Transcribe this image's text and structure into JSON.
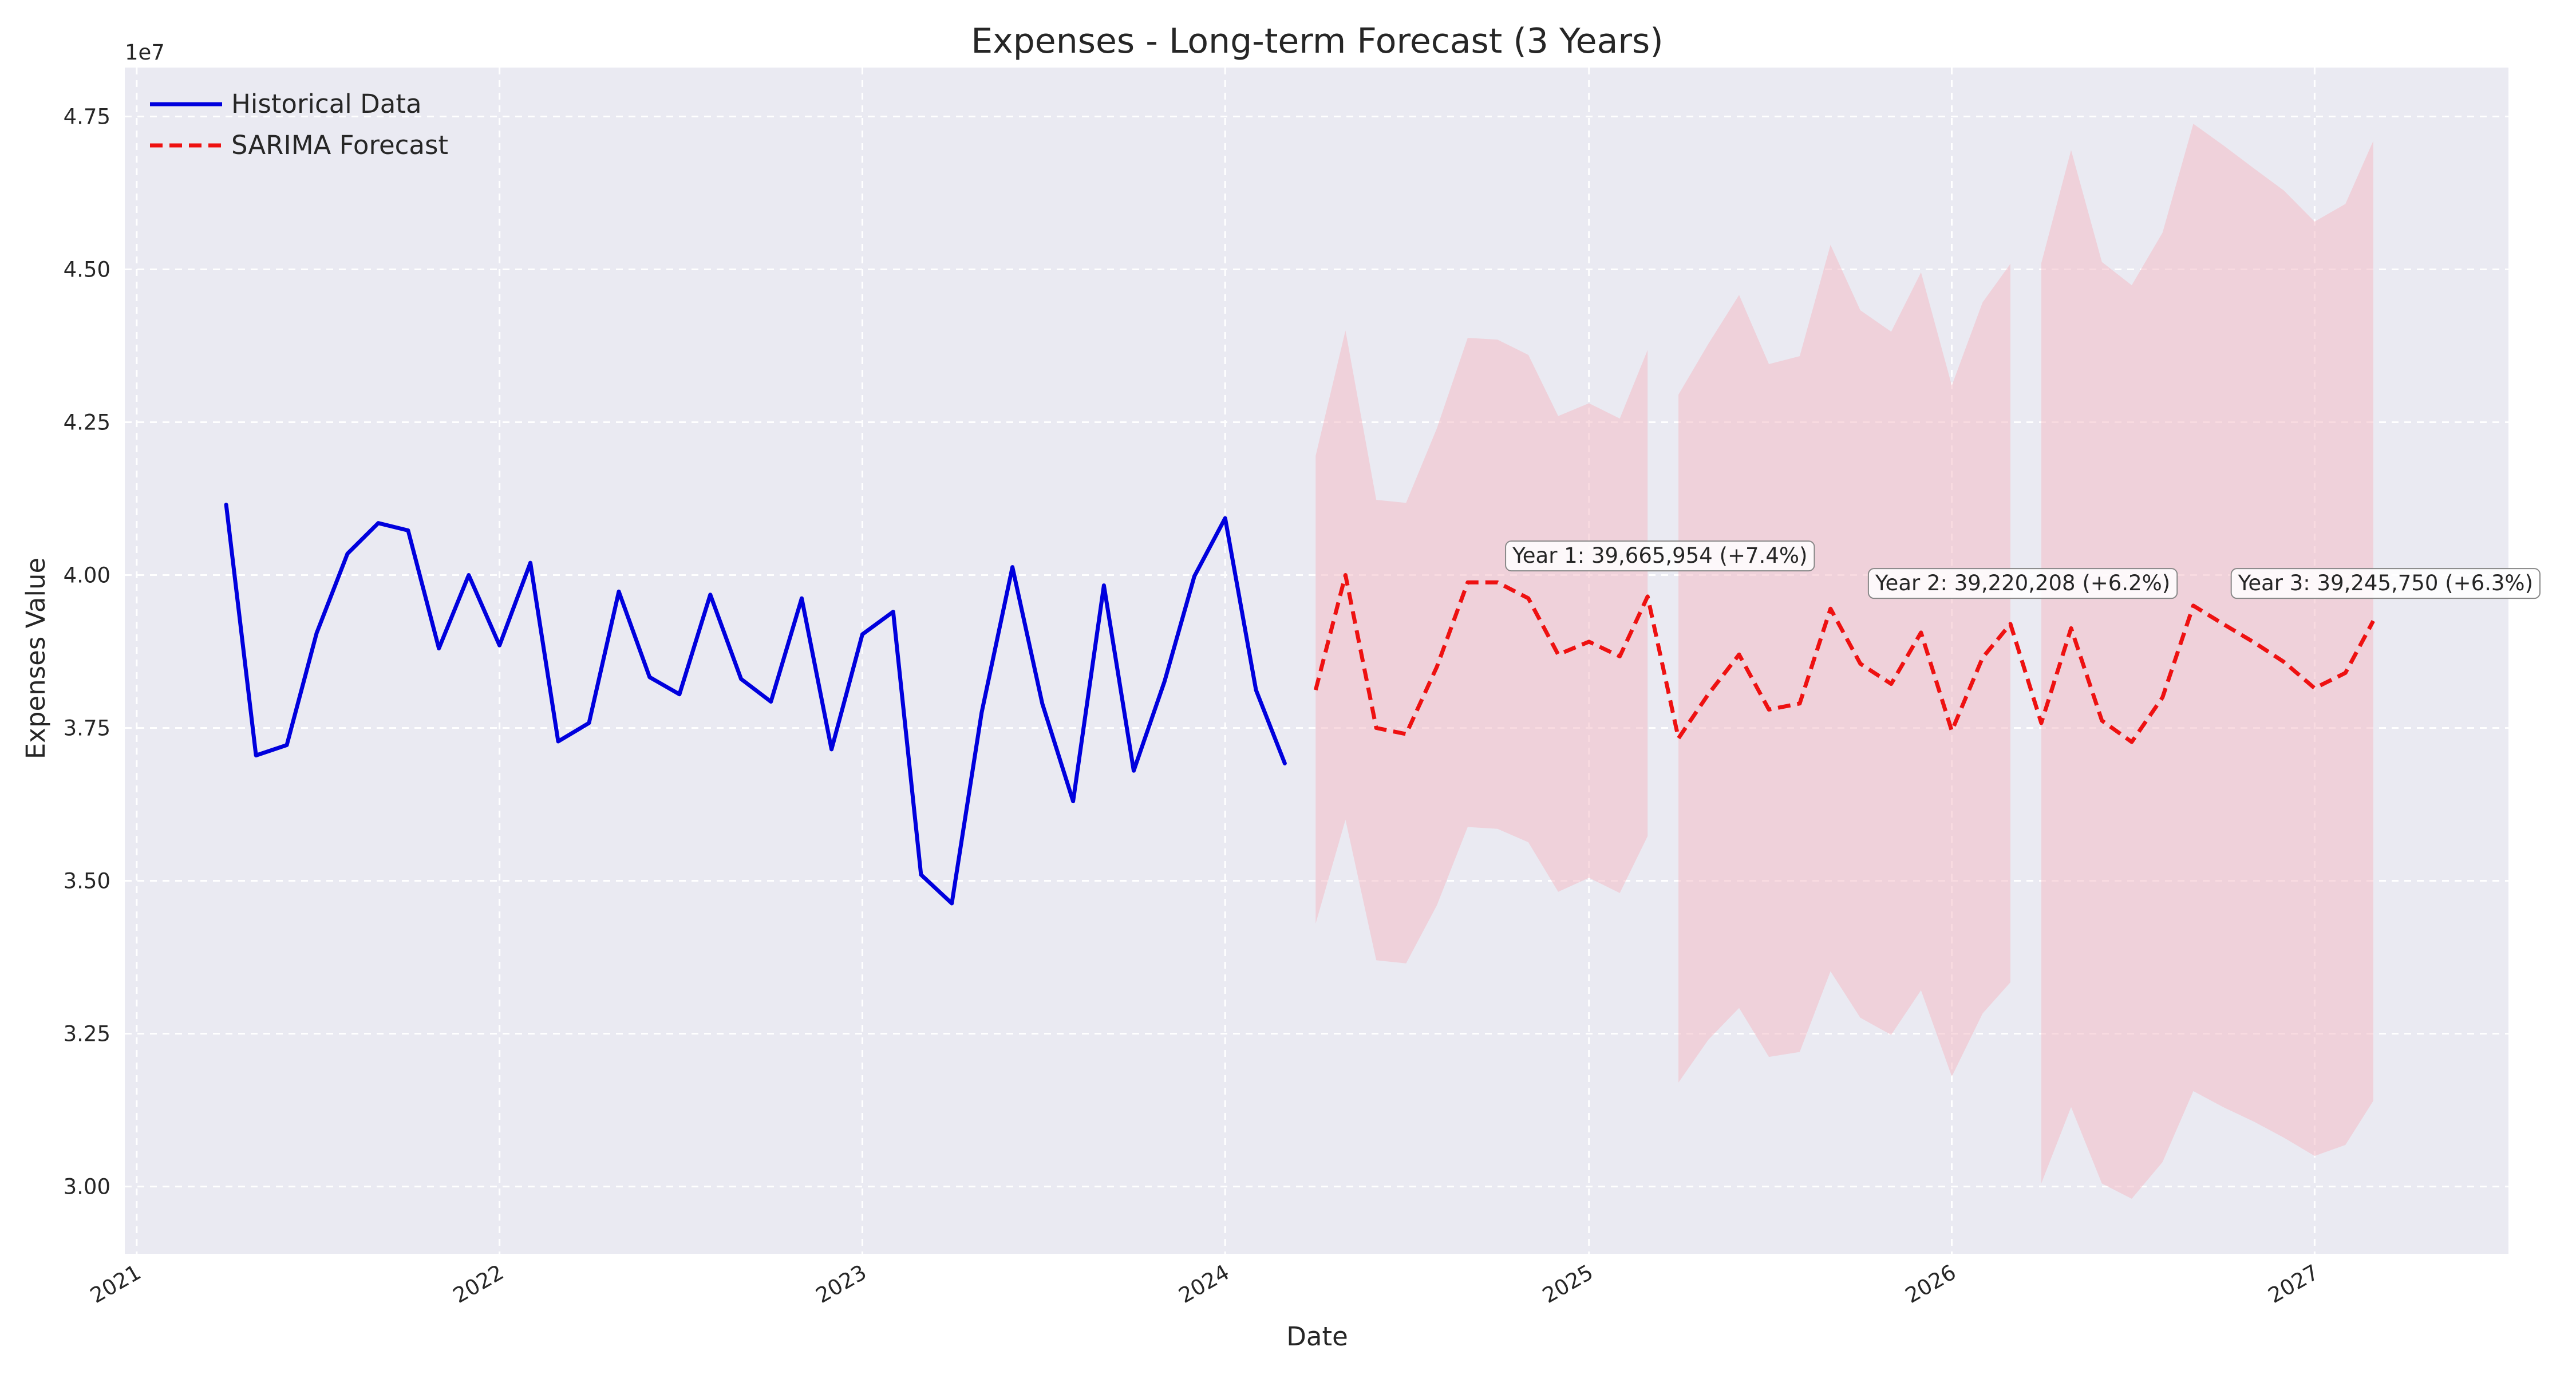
{
  "chart_data": {
    "type": "line",
    "title": "Expenses - Long-term Forecast (3 Years)",
    "xlabel": "Date",
    "ylabel": "Expenses Value",
    "y_offset_label": "1e7",
    "x_range": [
      "2020-12-20",
      "2027-07-15"
    ],
    "ylim": [
      2.89,
      4.83
    ],
    "y_ticks": [
      3.0,
      3.25,
      3.5,
      3.75,
      4.0,
      4.25,
      4.5,
      4.75
    ],
    "y_tick_labels": [
      "3.00",
      "3.25",
      "3.50",
      "3.75",
      "4.00",
      "4.25",
      "4.50",
      "4.75"
    ],
    "x_ticks": [
      "2021-01-01",
      "2022-01-01",
      "2023-01-01",
      "2024-01-01",
      "2025-01-01",
      "2026-01-01",
      "2027-01-01"
    ],
    "x_tick_labels": [
      "2021",
      "2022",
      "2023",
      "2024",
      "2025",
      "2026",
      "2027"
    ],
    "grid": true,
    "legend_position": "top-left",
    "colors": {
      "background": "#eaeaf2",
      "historical": "#0000dd",
      "forecast": "#ee1111",
      "confidence": "#f3bcc6"
    },
    "series": [
      {
        "name": "Historical Data",
        "style": "solid",
        "x": [
          "2021-04-01",
          "2021-05-01",
          "2021-06-01",
          "2021-07-01",
          "2021-08-01",
          "2021-09-01",
          "2021-10-01",
          "2021-11-01",
          "2021-12-01",
          "2022-01-01",
          "2022-02-01",
          "2022-03-01",
          "2022-04-01",
          "2022-05-01",
          "2022-06-01",
          "2022-07-01",
          "2022-08-01",
          "2022-09-01",
          "2022-10-01",
          "2022-11-01",
          "2022-12-01",
          "2023-01-01",
          "2023-02-01",
          "2023-03-01",
          "2023-04-01",
          "2023-05-01",
          "2023-06-01",
          "2023-07-01",
          "2023-08-01",
          "2023-09-01",
          "2023-10-01",
          "2023-11-01",
          "2023-12-01",
          "2024-01-01",
          "2024-02-01",
          "2024-03-01"
        ],
        "values": [
          4.115,
          3.705,
          3.722,
          3.905,
          4.035,
          4.085,
          4.073,
          3.88,
          4.0,
          3.885,
          4.02,
          3.728,
          3.758,
          3.973,
          3.833,
          3.805,
          3.968,
          3.83,
          3.793,
          3.962,
          3.715,
          3.903,
          3.94,
          3.51,
          3.463,
          3.775,
          4.013,
          3.79,
          3.63,
          3.983,
          3.68,
          3.826,
          3.998,
          4.093,
          3.812,
          3.692
        ]
      },
      {
        "name": "SARIMA Forecast",
        "style": "dashed",
        "x": [
          "2024-04-01",
          "2024-05-01",
          "2024-06-01",
          "2024-07-01",
          "2024-08-01",
          "2024-09-01",
          "2024-10-01",
          "2024-11-01",
          "2024-12-01",
          "2025-01-01",
          "2025-02-01",
          "2025-03-01",
          "2025-04-01",
          "2025-05-01",
          "2025-06-01",
          "2025-07-01",
          "2025-08-01",
          "2025-09-01",
          "2025-10-01",
          "2025-11-01",
          "2025-12-01",
          "2026-01-01",
          "2026-02-01",
          "2026-03-01",
          "2026-04-01",
          "2026-05-01",
          "2026-06-01",
          "2026-07-01",
          "2026-08-01",
          "2026-09-01",
          "2026-10-01",
          "2026-11-01",
          "2026-12-01",
          "2027-01-01",
          "2027-02-01",
          "2027-03-01"
        ],
        "values": [
          3.812,
          4.0,
          3.75,
          3.74,
          3.85,
          3.988,
          3.988,
          3.962,
          3.87,
          3.891,
          3.867,
          3.965,
          3.733,
          3.805,
          3.87,
          3.78,
          3.79,
          3.945,
          3.855,
          3.822,
          3.906,
          3.745,
          3.865,
          3.92,
          3.758,
          3.913,
          3.762,
          3.727,
          3.8,
          3.95,
          3.92,
          3.89,
          3.858,
          3.815,
          3.84,
          3.925
        ],
        "lower": [
          3.43,
          3.6,
          3.37,
          3.365,
          3.46,
          3.588,
          3.585,
          3.563,
          3.482,
          3.505,
          3.48,
          3.573,
          3.17,
          3.24,
          3.292,
          3.212,
          3.22,
          3.352,
          3.276,
          3.248,
          3.321,
          3.18,
          3.283,
          3.334,
          3.005,
          3.13,
          3.005,
          2.98,
          3.04,
          3.156,
          3.13,
          3.106,
          3.08,
          3.05,
          3.068,
          3.14
        ],
        "upper": [
          4.195,
          4.4,
          4.123,
          4.118,
          4.24,
          4.388,
          4.385,
          4.36,
          4.26,
          4.281,
          4.256,
          4.368,
          4.295,
          4.378,
          4.458,
          4.345,
          4.358,
          4.54,
          4.433,
          4.398,
          4.495,
          4.31,
          4.446,
          4.509,
          4.51,
          4.695,
          4.512,
          4.474,
          4.56,
          4.738,
          4.703,
          4.665,
          4.629,
          4.578,
          4.607,
          4.71
        ]
      }
    ],
    "annotations": [
      {
        "text": "Year 1: 39,665,954 (+7.4%)",
        "x": "2024-10-16",
        "y": 4.02
      },
      {
        "text": "Year 2: 39,220,208 (+6.2%)",
        "x": "2025-10-16",
        "y": 3.975
      },
      {
        "text": "Year 3: 39,245,750 (+6.3%)",
        "x": "2026-10-16",
        "y": 3.975
      }
    ]
  }
}
